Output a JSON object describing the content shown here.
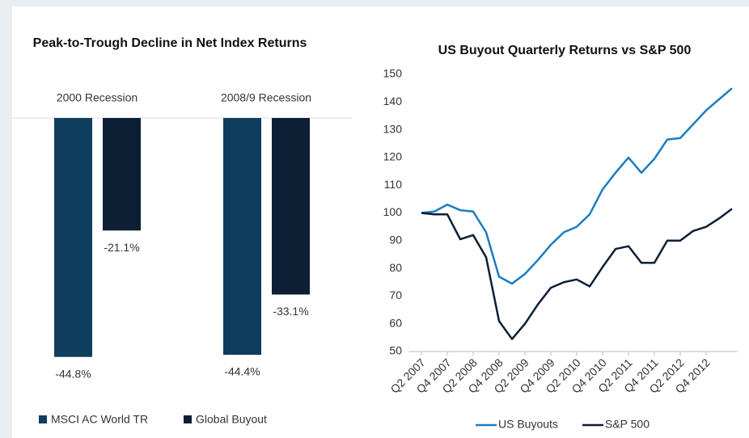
{
  "chart_data": [
    {
      "type": "bar",
      "title": "Peak-to-Trough Decline in Net Index Returns",
      "categories": [
        "2000 Recession",
        "2008/9 Recession"
      ],
      "series": [
        {
          "name": "MSCI AC World TR",
          "color": "#0f3d5e",
          "values": [
            -44.8,
            -44.4
          ],
          "value_labels": [
            "-44.8%",
            "-44.4%"
          ]
        },
        {
          "name": "Global Buyout",
          "color": "#0c1f35",
          "values": [
            -21.1,
            -33.1
          ],
          "value_labels": [
            "-21.1%",
            "-33.1%"
          ]
        }
      ],
      "ylim": [
        -50,
        0
      ]
    },
    {
      "type": "line",
      "title": "US Buyout Quarterly Returns vs S&P 500",
      "categories": [
        "Q2 2007",
        null,
        "Q4 2007",
        null,
        "Q2 2008",
        null,
        "Q4 2008",
        null,
        "Q2 2009",
        null,
        "Q4 2009",
        null,
        "Q2 2010",
        null,
        "Q4 2010",
        null,
        "Q2 2011",
        null,
        "Q4 2011",
        null,
        "Q2 2012",
        null,
        "Q4 2012",
        null,
        null
      ],
      "series": [
        {
          "name": "US Buyouts",
          "color": "#1b7dc0",
          "values": [
            100,
            100.5,
            103,
            101,
            100.5,
            93,
            77,
            74.5,
            78,
            83,
            88.5,
            93,
            95,
            99.5,
            108.5,
            114.5,
            120,
            114.5,
            119.5,
            126.5,
            127,
            132,
            137,
            141,
            145
          ]
        },
        {
          "name": "S&P 500",
          "color": "#0c1f35",
          "values": [
            100,
            99.5,
            99.5,
            90.5,
            92,
            84,
            61,
            54.5,
            60,
            67,
            73,
            75,
            76,
            73.5,
            80.5,
            87,
            88,
            82,
            82,
            90,
            90,
            93.5,
            95,
            98,
            101.5
          ]
        }
      ],
      "ylim": [
        50,
        150
      ],
      "yticks": [
        50,
        60,
        70,
        80,
        90,
        100,
        110,
        120,
        130,
        140,
        150
      ]
    }
  ]
}
